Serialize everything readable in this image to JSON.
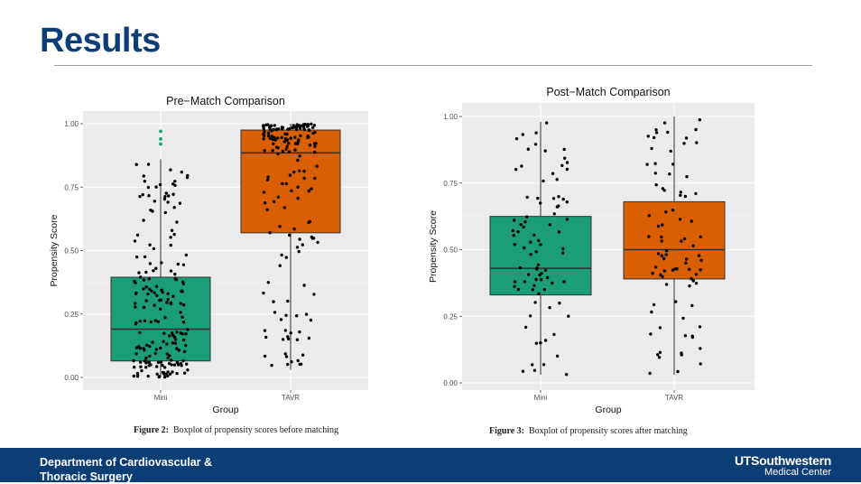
{
  "slide": {
    "title": "Results",
    "footer_dept_line1": "Department of Cardiovascular &",
    "footer_dept_line2": "Thoracic Surgery",
    "logo_line1": "UTSouthwestern",
    "logo_line2": "Medical Center"
  },
  "colors": {
    "title": "#0d3e78",
    "footer_bg": "#0c3d75",
    "mini_box": "#1b9e77",
    "tavr_box": "#d95f02",
    "panel_bg": "#ebebeb"
  },
  "captions": [
    {
      "label": "Figure 2:",
      "text": "Boxplot of propensity scores before matching"
    },
    {
      "label": "Figure 3:",
      "text": "Boxplot of propensity scores after matching"
    }
  ],
  "chart_data": [
    {
      "type": "box",
      "title": "Pre−Match Comparison",
      "xlabel": "Group",
      "ylabel": "Propensity Score",
      "ylim": [
        0,
        1
      ],
      "y_ticks": [
        "0.00",
        "0.25",
        "0.50",
        "0.75",
        "1.00"
      ],
      "categories": [
        "Mini",
        "TAVR"
      ],
      "boxes": [
        {
          "name": "Mini",
          "min": 0.0,
          "q1": 0.065,
          "median": 0.19,
          "q3": 0.395,
          "max": 0.86,
          "outliers": [
            0.92,
            0.94,
            0.97
          ]
        },
        {
          "name": "TAVR",
          "min": 0.03,
          "q1": 0.57,
          "median": 0.885,
          "q3": 0.975,
          "max": 1.0,
          "outliers": []
        }
      ],
      "grid": true,
      "legend": "none"
    },
    {
      "type": "box",
      "title": "Post−Match Comparison",
      "xlabel": "Group",
      "ylabel": "Propensity Score",
      "ylim": [
        0,
        1
      ],
      "y_ticks": [
        "0.00",
        "0.25",
        "0.50",
        "0.75",
        "1.00"
      ],
      "categories": [
        "Mini",
        "TAVR"
      ],
      "boxes": [
        {
          "name": "Mini",
          "min": 0.03,
          "q1": 0.33,
          "median": 0.43,
          "q3": 0.625,
          "max": 0.98,
          "outliers": []
        },
        {
          "name": "TAVR",
          "min": 0.03,
          "q1": 0.39,
          "median": 0.5,
          "q3": 0.68,
          "max": 1.0,
          "outliers": []
        }
      ],
      "grid": true,
      "legend": "none"
    }
  ]
}
